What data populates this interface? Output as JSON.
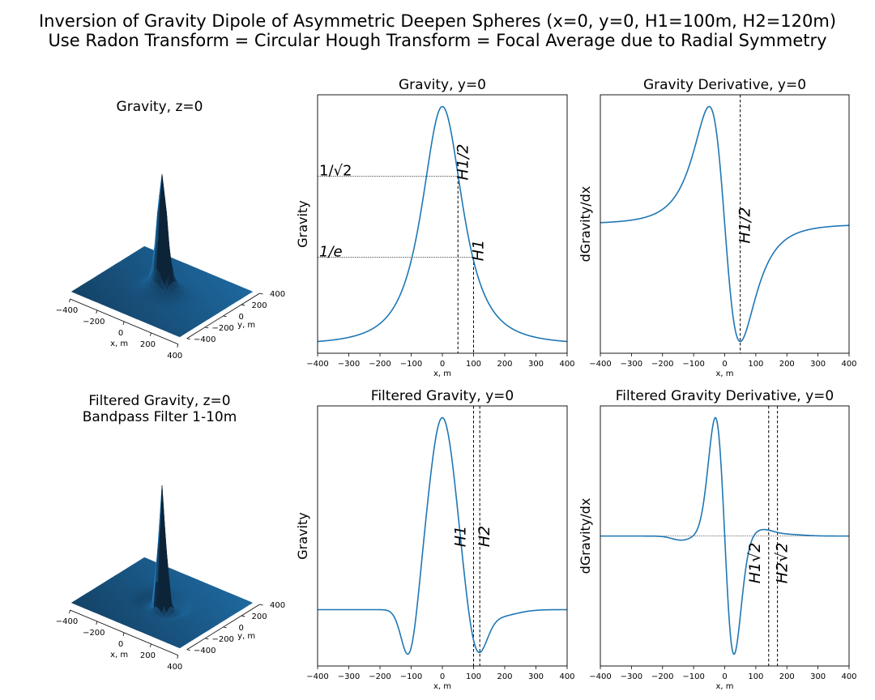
{
  "figure": {
    "title_line1": "Inversion of Gravity Dipole of Asymmetric Deepen Spheres (x=0, y=0, H1=100m, H2=120m)",
    "title_line2": "Use Radon Transform = Circular Hough Transform = Focal Average due to Radial Symmetry"
  },
  "colors": {
    "line": "#1f77b4",
    "surface_light": "#2a82c4",
    "surface_dark": "#0d2438"
  },
  "chart_data": [
    {
      "type": "surface3d",
      "title": "Gravity, z=0",
      "xlabel": "x, m",
      "ylabel": "y, m",
      "xticks": [
        -400,
        -200,
        0,
        200,
        400
      ],
      "yticks": [
        -400,
        -200,
        0,
        200,
        400
      ],
      "xlim": [
        -400,
        400
      ],
      "ylim": [
        -400,
        400
      ]
    },
    {
      "type": "line",
      "title": "Gravity, y=0",
      "xlabel": "x, m",
      "ylabel": "Gravity",
      "xlim": [
        -400,
        400
      ],
      "xticks": [
        -400,
        -300,
        -200,
        -100,
        0,
        100,
        200,
        300,
        400
      ],
      "series": [
        {
          "model": "gravity",
          "H": 100
        }
      ],
      "vlines": [
        {
          "x": 50,
          "label": "H1/2"
        },
        {
          "x": 100,
          "label": "H1"
        }
      ],
      "hlines": [
        {
          "label": "1/√2"
        },
        {
          "label": "1/e"
        }
      ]
    },
    {
      "type": "line",
      "title": "Gravity Derivative, y=0",
      "xlabel": "x, m",
      "ylabel": "dGravity/dx",
      "xlim": [
        -400,
        400
      ],
      "xticks": [
        -400,
        -300,
        -200,
        -100,
        0,
        100,
        200,
        300,
        400
      ],
      "series": [
        {
          "model": "gravity_derivative",
          "H": 100
        }
      ],
      "vlines": [
        {
          "x": 50,
          "label": "H1/2"
        }
      ]
    },
    {
      "type": "surface3d",
      "title": "Filtered Gravity, z=0",
      "subtitle": "Bandpass Filter 1-10m",
      "xlabel": "x, m",
      "ylabel": "y, m",
      "xticks": [
        -400,
        -200,
        0,
        200,
        400
      ],
      "yticks": [
        -400,
        -200,
        0,
        200,
        400
      ],
      "xlim": [
        -400,
        400
      ],
      "ylim": [
        -400,
        400
      ]
    },
    {
      "type": "line",
      "title": "Filtered Gravity, y=0",
      "xlabel": "x, m",
      "ylabel": "Gravity",
      "xlim": [
        -400,
        400
      ],
      "xticks": [
        -400,
        -300,
        -200,
        -100,
        0,
        100,
        200,
        300,
        400
      ],
      "series": [
        {
          "model": "filtered_gravity",
          "H1": 100,
          "H2": 120
        }
      ],
      "vlines": [
        {
          "x": 100,
          "label": "H1"
        },
        {
          "x": 120,
          "label": "H2"
        }
      ]
    },
    {
      "type": "line",
      "title": "Filtered Gravity Derivative, y=0",
      "xlabel": "x, m",
      "ylabel": "dGravity/dx",
      "xlim": [
        -400,
        400
      ],
      "xticks": [
        -400,
        -300,
        -200,
        -100,
        0,
        100,
        200,
        300,
        400
      ],
      "series": [
        {
          "model": "filtered_gravity_derivative",
          "H1": 100,
          "H2": 120
        }
      ],
      "vlines": [
        {
          "x": 141.4,
          "label": "H1√2"
        },
        {
          "x": 169.7,
          "label": "H2√2"
        }
      ]
    }
  ]
}
